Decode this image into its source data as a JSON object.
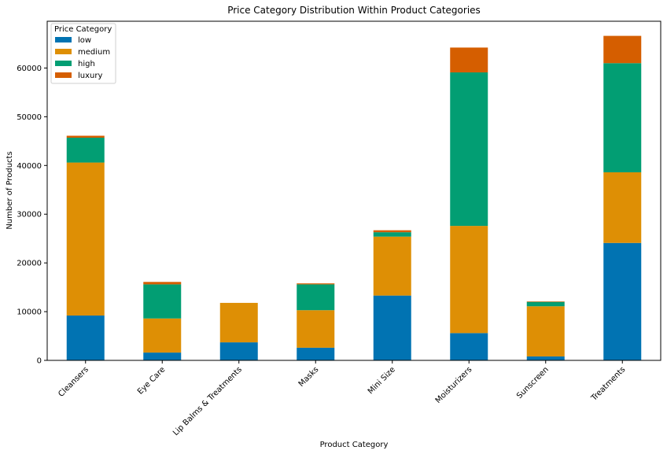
{
  "chart_data": {
    "type": "bar",
    "stacked": true,
    "title": "Price Category Distribution Within Product Categories",
    "xlabel": "Product Category",
    "ylabel": "Number of Products",
    "ylim": [
      0,
      69600
    ],
    "yticks": [
      0,
      10000,
      20000,
      30000,
      40000,
      50000,
      60000
    ],
    "categories": [
      "Cleansers",
      "Eye Care",
      "Lip Balms & Treatments",
      "Masks",
      "Mini Size",
      "Moisturizers",
      "Sunscreen",
      "Treatments"
    ],
    "legend": {
      "title": "Price Category",
      "position": "top-left"
    },
    "series": [
      {
        "name": "low",
        "color": "#0173b2",
        "values": [
          9200,
          1600,
          3700,
          2600,
          13300,
          5600,
          800,
          24100
        ]
      },
      {
        "name": "medium",
        "color": "#de8f05",
        "values": [
          31400,
          7000,
          8100,
          7700,
          12100,
          22000,
          10300,
          14500
        ]
      },
      {
        "name": "high",
        "color": "#029e73",
        "values": [
          5100,
          7000,
          0,
          5300,
          900,
          31500,
          900,
          22400
        ]
      },
      {
        "name": "luxury",
        "color": "#d55e00",
        "values": [
          400,
          500,
          0,
          200,
          400,
          5100,
          100,
          5600
        ]
      }
    ],
    "grid": false
  }
}
